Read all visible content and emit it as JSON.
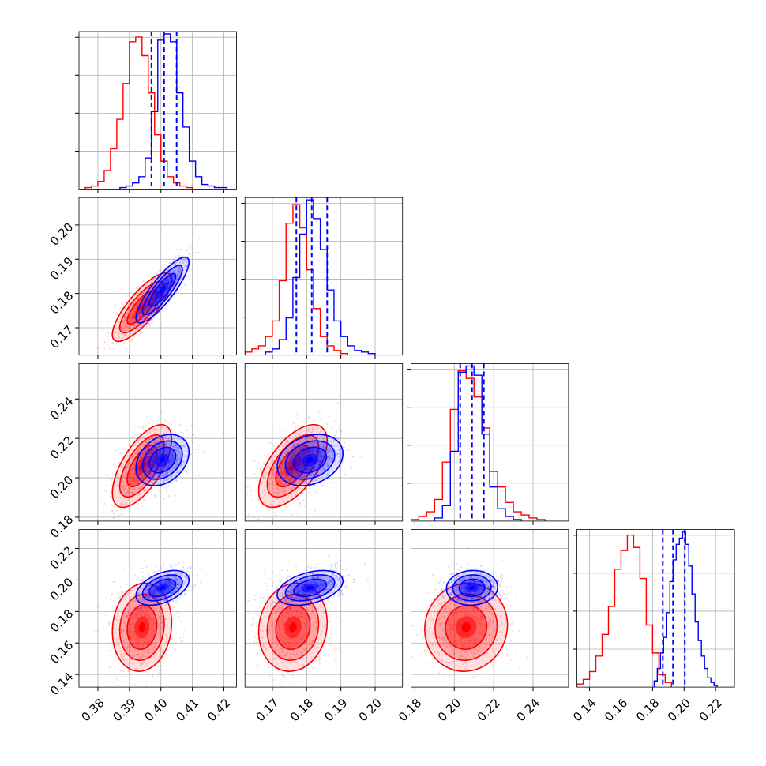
{
  "chart_data": {
    "type": "corner",
    "grid": true,
    "parameters": [
      {
        "range": [
          0.374,
          0.424
        ],
        "ticks": [
          0.38,
          0.39,
          0.4,
          0.41,
          0.42
        ],
        "tick_labels": [
          "0.38",
          "0.39",
          "0.40",
          "0.41",
          "0.42"
        ]
      },
      {
        "range": [
          0.162,
          0.208
        ],
        "ticks": [
          0.17,
          0.18,
          0.19,
          0.2
        ],
        "tick_labels": [
          "0.17",
          "0.18",
          "0.19",
          "0.20"
        ]
      },
      {
        "range": [
          0.178,
          0.258
        ],
        "ticks": [
          0.18,
          0.2,
          0.22,
          0.24
        ],
        "tick_labels": [
          "0.18",
          "0.20",
          "0.22",
          "0.24"
        ]
      },
      {
        "range": [
          0.132,
          0.232
        ],
        "ticks": [
          0.14,
          0.16,
          0.18,
          0.2,
          0.22
        ],
        "tick_labels": [
          "0.14",
          "0.16",
          "0.18",
          "0.20",
          "0.22"
        ]
      }
    ],
    "series": [
      {
        "color": "#ff0000",
        "mean": [
          0.394,
          0.176,
          0.206,
          0.17
        ],
        "sd": [
          0.0047,
          0.005,
          0.0105,
          0.014
        ],
        "corr": [
          [
            1,
            0.8,
            0.65,
            0.1
          ],
          [
            0.8,
            1,
            0.6,
            0.1
          ],
          [
            0.65,
            0.6,
            1,
            0.05
          ],
          [
            0.1,
            0.1,
            0.05,
            1
          ]
        ],
        "hist": [
          {
            "x": [
              0.377,
              0.379,
              0.381,
              0.383,
              0.385,
              0.387,
              0.389,
              0.391,
              0.393,
              0.395,
              0.397,
              0.399,
              0.401,
              0.403,
              0.405,
              0.407,
              0.409
            ],
            "y": [
              1,
              2,
              5,
              12,
              26,
              45,
              68,
              95,
              98,
              86,
              62,
              35,
              18,
              8,
              4,
              2,
              1
            ]
          },
          {
            "x": [
              0.163,
              0.165,
              0.167,
              0.169,
              0.171,
              0.173,
              0.175,
              0.177,
              0.179,
              0.181,
              0.183,
              0.185,
              0.187,
              0.189,
              0.191
            ],
            "y": [
              2,
              4,
              6,
              12,
              22,
              48,
              85,
              97,
              82,
              55,
              30,
              12,
              6,
              3,
              1
            ]
          },
          {
            "x": [
              0.18,
              0.184,
              0.188,
              0.192,
              0.196,
              0.2,
              0.204,
              0.208,
              0.212,
              0.216,
              0.22,
              0.224,
              0.228,
              0.232,
              0.236,
              0.24,
              0.244
            ],
            "y": [
              1,
              3,
              6,
              14,
              38,
              72,
              97,
              92,
              80,
              60,
              32,
              22,
              12,
              6,
              4,
              2,
              1
            ]
          },
          {
            "x": [
              0.134,
              0.138,
              0.142,
              0.146,
              0.15,
              0.154,
              0.158,
              0.162,
              0.166,
              0.17,
              0.174,
              0.178,
              0.182,
              0.186,
              0.19
            ],
            "y": [
              2,
              5,
              10,
              20,
              34,
              52,
              76,
              88,
              98,
              90,
              70,
              40,
              22,
              8,
              3
            ]
          }
        ]
      },
      {
        "color": "#0000ff",
        "mean": [
          0.4005,
          0.181,
          0.209,
          0.195
        ],
        "sd": [
          0.0042,
          0.0048,
          0.0065,
          0.0055
        ],
        "corr": [
          [
            1,
            0.85,
            0.3,
            0.45
          ],
          [
            0.85,
            1,
            0.25,
            0.4
          ],
          [
            0.3,
            0.25,
            1,
            0.05
          ],
          [
            0.45,
            0.4,
            0.05,
            1
          ]
        ],
        "hist": [
          {
            "x": [
              0.388,
              0.39,
              0.392,
              0.394,
              0.396,
              0.398,
              0.4,
              0.402,
              0.404,
              0.406,
              0.408,
              0.41,
              0.412,
              0.414,
              0.416,
              0.418,
              0.42
            ],
            "y": [
              1,
              2,
              4,
              8,
              20,
              50,
              96,
              100,
              95,
              62,
              40,
              18,
              8,
              3,
              2,
              1,
              1
            ]
          },
          {
            "x": [
              0.169,
              0.171,
              0.173,
              0.175,
              0.177,
              0.179,
              0.181,
              0.183,
              0.185,
              0.187,
              0.189,
              0.191,
              0.193,
              0.195,
              0.197,
              0.199
            ],
            "y": [
              2,
              4,
              10,
              24,
              50,
              78,
              100,
              88,
              68,
              42,
              22,
              12,
              6,
              3,
              2,
              1
            ]
          },
          {
            "x": [
              0.192,
              0.196,
              0.2,
              0.204,
              0.208,
              0.212,
              0.216,
              0.22,
              0.224,
              0.228,
              0.232
            ],
            "y": [
              2,
              10,
              45,
              96,
              100,
              94,
              56,
              22,
              8,
              3,
              1
            ]
          },
          {
            "x": [
              0.182,
              0.184,
              0.186,
              0.188,
              0.19,
              0.192,
              0.194,
              0.196,
              0.198,
              0.2,
              0.202,
              0.204,
              0.206,
              0.208,
              0.21,
              0.212,
              0.214,
              0.216,
              0.218,
              0.22
            ],
            "y": [
              4,
              12,
              22,
              32,
              48,
              68,
              82,
              92,
              96,
              100,
              92,
              78,
              60,
              42,
              30,
              20,
              12,
              6,
              3,
              1
            ]
          }
        ]
      }
    ],
    "quantile_lines": {
      "color": "#0000ff",
      "style": "dashed",
      "values": [
        [
          0.397,
          0.401,
          0.405
        ],
        [
          0.177,
          0.1815,
          0.186
        ],
        [
          0.203,
          0.209,
          0.215
        ],
        [
          0.1865,
          0.193,
          0.2005
        ]
      ]
    }
  }
}
